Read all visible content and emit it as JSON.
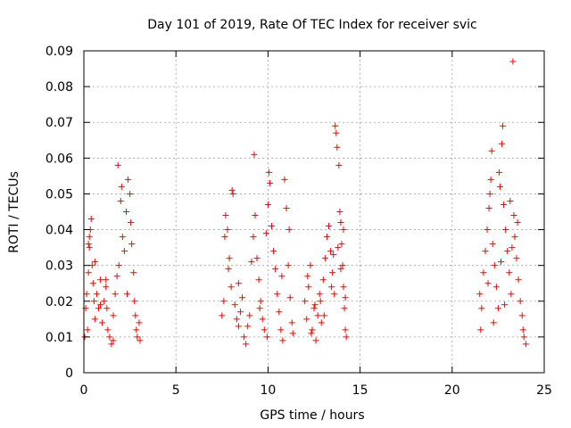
{
  "chart_data": {
    "type": "scatter",
    "title": "Day 101 of 2019, Rate Of TEC Index for receiver svic",
    "xlabel": "GPS time / hours",
    "ylabel": "ROTI / TECUs",
    "xlim": [
      0,
      25
    ],
    "ylim": [
      0,
      0.09
    ],
    "x_ticks": [
      0,
      5,
      10,
      15,
      20,
      25
    ],
    "y_ticks": [
      0,
      0.01,
      0.02,
      0.03,
      0.04,
      0.05,
      0.06,
      0.07,
      0.08,
      0.09
    ],
    "grid": true,
    "marker": "+",
    "color": "#ff0000",
    "series": [
      {
        "name": "ROTI",
        "points": [
          [
            0.05,
            0.01
          ],
          [
            0.1,
            0.018
          ],
          [
            0.15,
            0.022
          ],
          [
            0.2,
            0.012
          ],
          [
            0.25,
            0.028
          ],
          [
            0.3,
            0.035
          ],
          [
            0.35,
            0.04
          ],
          [
            0.4,
            0.043
          ],
          [
            0.45,
            0.03
          ],
          [
            0.5,
            0.025
          ],
          [
            0.55,
            0.02
          ],
          [
            0.6,
            0.015
          ],
          [
            0.7,
            0.022
          ],
          [
            0.8,
            0.018
          ],
          [
            0.9,
            0.026
          ],
          [
            1.0,
            0.014
          ],
          [
            1.1,
            0.02
          ],
          [
            1.2,
            0.024
          ],
          [
            1.3,
            0.012
          ],
          [
            1.4,
            0.01
          ],
          [
            1.5,
            0.008
          ],
          [
            1.6,
            0.016
          ],
          [
            1.7,
            0.022
          ],
          [
            1.8,
            0.027
          ],
          [
            1.9,
            0.03
          ],
          [
            1.85,
            0.058
          ],
          [
            2.0,
            0.048
          ],
          [
            2.05,
            0.052
          ],
          [
            2.1,
            0.038
          ],
          [
            2.2,
            0.034
          ],
          [
            2.3,
            0.045
          ],
          [
            2.4,
            0.054
          ],
          [
            2.5,
            0.05
          ],
          [
            2.55,
            0.042
          ],
          [
            2.6,
            0.036
          ],
          [
            2.7,
            0.028
          ],
          [
            2.75,
            0.02
          ],
          [
            2.8,
            0.016
          ],
          [
            2.85,
            0.012
          ],
          [
            2.9,
            0.01
          ],
          [
            3.0,
            0.014
          ],
          [
            3.05,
            0.009
          ],
          [
            0.25,
            0.036
          ],
          [
            0.3,
            0.038
          ],
          [
            1.2,
            0.026
          ],
          [
            1.25,
            0.018
          ],
          [
            2.35,
            0.022
          ],
          [
            0.6,
            0.031
          ],
          [
            0.9,
            0.019
          ],
          [
            1.6,
            0.009
          ],
          [
            7.5,
            0.016
          ],
          [
            7.6,
            0.02
          ],
          [
            7.65,
            0.038
          ],
          [
            7.7,
            0.044
          ],
          [
            7.8,
            0.04
          ],
          [
            7.9,
            0.032
          ],
          [
            8.0,
            0.024
          ],
          [
            8.05,
            0.051
          ],
          [
            8.1,
            0.05
          ],
          [
            8.2,
            0.019
          ],
          [
            8.3,
            0.015
          ],
          [
            8.4,
            0.013
          ],
          [
            8.5,
            0.017
          ],
          [
            8.6,
            0.021
          ],
          [
            8.7,
            0.01
          ],
          [
            8.8,
            0.008
          ],
          [
            8.9,
            0.013
          ],
          [
            9.0,
            0.016
          ],
          [
            9.1,
            0.031
          ],
          [
            9.2,
            0.038
          ],
          [
            9.25,
            0.061
          ],
          [
            9.3,
            0.044
          ],
          [
            9.4,
            0.032
          ],
          [
            9.5,
            0.026
          ],
          [
            9.6,
            0.02
          ],
          [
            9.7,
            0.015
          ],
          [
            9.8,
            0.012
          ],
          [
            9.9,
            0.039
          ],
          [
            10.0,
            0.047
          ],
          [
            10.05,
            0.056
          ],
          [
            10.1,
            0.053
          ],
          [
            10.2,
            0.041
          ],
          [
            10.3,
            0.034
          ],
          [
            10.4,
            0.029
          ],
          [
            10.5,
            0.022
          ],
          [
            10.6,
            0.017
          ],
          [
            10.7,
            0.012
          ],
          [
            10.8,
            0.009
          ],
          [
            10.9,
            0.054
          ],
          [
            11.0,
            0.046
          ],
          [
            11.1,
            0.03
          ],
          [
            11.2,
            0.021
          ],
          [
            11.3,
            0.014
          ],
          [
            11.35,
            0.011
          ],
          [
            8.4,
            0.025
          ],
          [
            9.55,
            0.018
          ],
          [
            10.75,
            0.027
          ],
          [
            11.15,
            0.04
          ],
          [
            7.85,
            0.029
          ],
          [
            9.95,
            0.01
          ],
          [
            12.0,
            0.02
          ],
          [
            12.1,
            0.015
          ],
          [
            12.2,
            0.024
          ],
          [
            12.3,
            0.03
          ],
          [
            12.4,
            0.012
          ],
          [
            12.5,
            0.018
          ],
          [
            12.6,
            0.009
          ],
          [
            12.7,
            0.016
          ],
          [
            12.8,
            0.022
          ],
          [
            12.9,
            0.014
          ],
          [
            13.0,
            0.026
          ],
          [
            13.1,
            0.032
          ],
          [
            13.2,
            0.038
          ],
          [
            13.3,
            0.041
          ],
          [
            13.4,
            0.034
          ],
          [
            13.5,
            0.028
          ],
          [
            13.6,
            0.022
          ],
          [
            13.65,
            0.069
          ],
          [
            13.7,
            0.067
          ],
          [
            13.75,
            0.063
          ],
          [
            13.8,
            0.035
          ],
          [
            13.85,
            0.058
          ],
          [
            13.9,
            0.045
          ],
          [
            13.95,
            0.042
          ],
          [
            14.0,
            0.036
          ],
          [
            14.05,
            0.03
          ],
          [
            14.1,
            0.024
          ],
          [
            14.15,
            0.018
          ],
          [
            14.2,
            0.012
          ],
          [
            14.25,
            0.01
          ],
          [
            12.15,
            0.027
          ],
          [
            12.55,
            0.019
          ],
          [
            13.05,
            0.016
          ],
          [
            13.45,
            0.024
          ],
          [
            13.95,
            0.029
          ],
          [
            14.1,
            0.04
          ],
          [
            12.35,
            0.011
          ],
          [
            12.85,
            0.02
          ],
          [
            13.55,
            0.033
          ],
          [
            14.2,
            0.021
          ],
          [
            21.5,
            0.022
          ],
          [
            21.55,
            0.012
          ],
          [
            21.6,
            0.018
          ],
          [
            21.7,
            0.028
          ],
          [
            21.8,
            0.034
          ],
          [
            21.9,
            0.04
          ],
          [
            22.0,
            0.046
          ],
          [
            22.05,
            0.05
          ],
          [
            22.1,
            0.054
          ],
          [
            22.15,
            0.062
          ],
          [
            22.2,
            0.036
          ],
          [
            22.3,
            0.03
          ],
          [
            22.4,
            0.024
          ],
          [
            22.5,
            0.018
          ],
          [
            22.55,
            0.056
          ],
          [
            22.6,
            0.052
          ],
          [
            22.7,
            0.064
          ],
          [
            22.75,
            0.069
          ],
          [
            22.8,
            0.047
          ],
          [
            22.9,
            0.04
          ],
          [
            23.0,
            0.034
          ],
          [
            23.1,
            0.028
          ],
          [
            23.2,
            0.022
          ],
          [
            23.3,
            0.087
          ],
          [
            23.35,
            0.044
          ],
          [
            23.4,
            0.038
          ],
          [
            23.5,
            0.032
          ],
          [
            23.6,
            0.026
          ],
          [
            23.7,
            0.02
          ],
          [
            23.8,
            0.016
          ],
          [
            23.85,
            0.012
          ],
          [
            23.9,
            0.01
          ],
          [
            24.0,
            0.008
          ],
          [
            22.25,
            0.014
          ],
          [
            22.65,
            0.031
          ],
          [
            23.15,
            0.048
          ],
          [
            23.55,
            0.042
          ],
          [
            21.95,
            0.025
          ],
          [
            22.85,
            0.019
          ],
          [
            23.25,
            0.035
          ]
        ]
      }
    ]
  }
}
